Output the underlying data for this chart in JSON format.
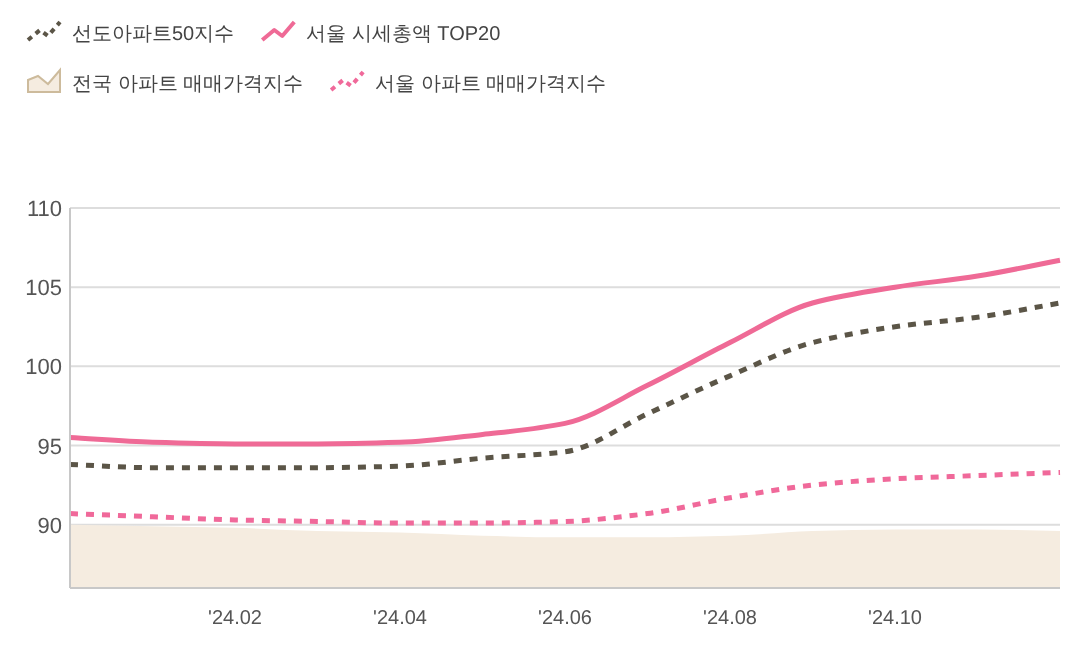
{
  "chart_data": {
    "type": "line",
    "x": [
      "2023-12",
      "2024-01",
      "2024-02",
      "2024-03",
      "2024-04",
      "2024-05",
      "2024-06",
      "2024-07",
      "2024-08",
      "2024-09",
      "2024-10",
      "2024-11",
      "2024-12"
    ],
    "series": [
      {
        "name": "선도아파트50지수",
        "line_style": "dotted",
        "color": "#5b5547",
        "values": [
          93.8,
          93.6,
          93.6,
          93.6,
          93.7,
          94.2,
          94.6,
          97.0,
          99.4,
          101.5,
          102.5,
          103.1,
          104.0
        ]
      },
      {
        "name": "서울 시세총액 TOP20",
        "line_style": "solid",
        "color": "#ef6a96",
        "values": [
          95.5,
          95.2,
          95.1,
          95.1,
          95.2,
          95.7,
          96.4,
          98.8,
          101.5,
          104.0,
          105.0,
          105.7,
          106.7
        ]
      },
      {
        "name": "전국 아파트 매매가격지수",
        "type": "area",
        "color": "#f5ece0",
        "values": [
          90.0,
          89.9,
          89.8,
          89.6,
          89.5,
          89.3,
          89.2,
          89.2,
          89.3,
          89.6,
          89.7,
          89.7,
          89.6
        ]
      },
      {
        "name": "서울 아파트 매매가격지수",
        "line_style": "dotted",
        "color": "#f0699a",
        "values": [
          90.7,
          90.5,
          90.3,
          90.2,
          90.1,
          90.1,
          90.2,
          90.7,
          91.7,
          92.5,
          92.9,
          93.1,
          93.3
        ]
      }
    ],
    "xlim": [
      "2023-12",
      "2024-12"
    ],
    "xticks": [
      {
        "value": "2024-02",
        "label": "'24.02"
      },
      {
        "value": "2024-04",
        "label": "'24.04"
      },
      {
        "value": "2024-06",
        "label": "'24.06"
      },
      {
        "value": "2024-08",
        "label": "'24.08"
      },
      {
        "value": "2024-10",
        "label": "'24.10"
      }
    ],
    "ylim": [
      86,
      110
    ],
    "yticks": [
      90,
      95,
      100,
      105,
      110
    ],
    "grid": "y",
    "legend": "top left"
  }
}
